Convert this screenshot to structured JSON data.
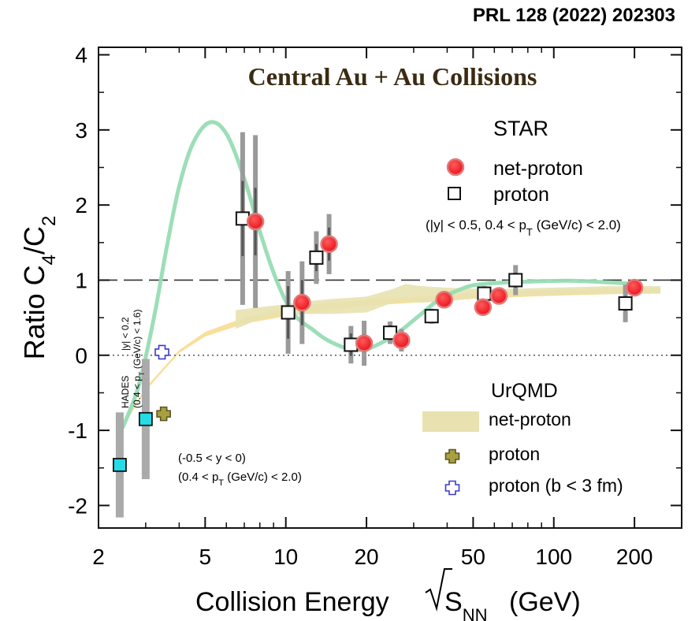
{
  "reference": "PRL 128 (2022) 202303",
  "colors": {
    "net_proton_fill": "#f0141e",
    "net_proton_ring": "#e07a7a",
    "hades_fill": "#22dde8",
    "model_curve": "#97dcb4",
    "yellow_band": "#f7d98a",
    "urqmd_band": "#e8e2b0",
    "urqmd_proton": "#a8a040",
    "urqmd_b3": "#3a3ad0",
    "title_color": "#3a2b12",
    "err_gray": "#555555"
  },
  "chart_data": {
    "type": "scatter",
    "title": "Central Au + Au Collisions",
    "xlabel": "Collision Energy",
    "xlabel_sqrt": "S",
    "xlabel_sub": "NN",
    "xlabel_unit": "(GeV)",
    "ylabel": "Ratio C",
    "ylabel_sub1": "4",
    "ylabel_mid": "/C",
    "ylabel_sub2": "2",
    "xscale": "log",
    "xlim": [
      2,
      300
    ],
    "ylim": [
      -2.3,
      4.1
    ],
    "xticks": [
      2,
      5,
      10,
      20,
      50,
      100,
      200
    ],
    "xtick_labels": [
      "2",
      "5",
      "10",
      "20",
      "50",
      "100",
      "200"
    ],
    "yticks": [
      -2,
      -1,
      0,
      1,
      2,
      3,
      4
    ],
    "ytick_labels": [
      "-2",
      "-1",
      "0",
      "1",
      "2",
      "3",
      "4"
    ],
    "reference_lines": [
      {
        "y": 1,
        "style": "dashed"
      },
      {
        "y": 0,
        "style": "dotted"
      }
    ],
    "legend_star": {
      "title": "STAR",
      "net_proton": "net-proton",
      "proton": "proton",
      "cuts": "(|y| < 0.5, 0.4 < p",
      "cuts_sub": "T",
      "cuts_end": " (GeV/c) < 2.0)"
    },
    "legend_urqmd": {
      "title": "UrQMD",
      "net_proton": "net-proton",
      "proton": "proton",
      "proton_b3": "proton (b < 3 fm)"
    },
    "hades_label": "HADES",
    "hades_cut1": "|y| < 0.2",
    "hades_cut2a": "(0.4 < p",
    "hades_cut2b": "T",
    "hades_cut2c": " (GeV/c) < 1.6)",
    "urqmd_proton_cut1": "(-0.5 < y < 0)",
    "urqmd_proton_cut2a": "(0.4 < p",
    "urqmd_proton_cut2b": "T",
    "urqmd_proton_cut2c": " (GeV/c) < 2.0)",
    "series": [
      {
        "name": "net-proton",
        "points": [
          {
            "x": 7.7,
            "y": 1.78,
            "stat": 0.45,
            "sys": 1.15
          },
          {
            "x": 11.5,
            "y": 0.7,
            "stat": 0.3,
            "sys": 0.55
          },
          {
            "x": 14.5,
            "y": 1.48,
            "stat": 0.22,
            "sys": 0.4
          },
          {
            "x": 19.6,
            "y": 0.16,
            "stat": 0.12,
            "sys": 0.3
          },
          {
            "x": 27,
            "y": 0.2,
            "stat": 0.1,
            "sys": 0.15
          },
          {
            "x": 39,
            "y": 0.74,
            "stat": 0.1,
            "sys": 0.1
          },
          {
            "x": 54.4,
            "y": 0.64,
            "stat": 0.05,
            "sys": 0.05
          },
          {
            "x": 62.4,
            "y": 0.79,
            "stat": 0.08,
            "sys": 0.1
          },
          {
            "x": 200,
            "y": 0.9,
            "stat": 0.05,
            "sys": 0.06
          }
        ]
      },
      {
        "name": "proton",
        "points": [
          {
            "x": 6.9,
            "y": 1.82,
            "stat": 0.5,
            "sys": 1.15
          },
          {
            "x": 10.2,
            "y": 0.57,
            "stat": 0.35,
            "sys": 0.55
          },
          {
            "x": 13.0,
            "y": 1.3,
            "stat": 0.18,
            "sys": 0.35
          },
          {
            "x": 17.5,
            "y": 0.14,
            "stat": 0.15,
            "sys": 0.25
          },
          {
            "x": 24.5,
            "y": 0.3,
            "stat": 0.1,
            "sys": 0.15
          },
          {
            "x": 35,
            "y": 0.52,
            "stat": 0.08,
            "sys": 0.1
          },
          {
            "x": 55,
            "y": 0.82,
            "stat": 0.08,
            "sys": 0.1
          },
          {
            "x": 72,
            "y": 1.0,
            "stat": 0.1,
            "sys": 0.2
          },
          {
            "x": 185,
            "y": 0.69,
            "stat": 0.1,
            "sys": 0.25
          }
        ]
      },
      {
        "name": "HADES",
        "points": [
          {
            "x": 2.4,
            "y": -1.46,
            "sys": 0.7
          },
          {
            "x": 3.0,
            "y": -0.85,
            "sys": 0.8
          }
        ]
      },
      {
        "name": "proton",
        "model": "UrQMD",
        "points": [
          {
            "x": 3.5,
            "y": -0.78
          }
        ]
      },
      {
        "name": "proton (b < 3 fm)",
        "model": "UrQMD",
        "points": [
          {
            "x": 3.45,
            "y": 0.04
          }
        ]
      }
    ],
    "model_curve": {
      "x": [
        2.4,
        2.8,
        3.2,
        3.6,
        4.0,
        4.5,
        5.2,
        6.0,
        7.0,
        8.0,
        9.0,
        10.0,
        11.0,
        12.5,
        14.0,
        16.0,
        18.0,
        20.0,
        22.0,
        25.0,
        28.0,
        32.0,
        36.0,
        40.0,
        45.0,
        50.0,
        60.0,
        80.0,
        120.0,
        200.0
      ],
      "y": [
        -1.05,
        -0.45,
        0.45,
        1.45,
        2.25,
        2.82,
        3.1,
        2.95,
        2.35,
        1.65,
        1.1,
        0.72,
        0.5,
        0.35,
        0.22,
        0.12,
        0.07,
        0.08,
        0.14,
        0.25,
        0.38,
        0.55,
        0.7,
        0.8,
        0.88,
        0.93,
        0.96,
        0.98,
        0.99,
        0.95
      ]
    },
    "yellow_band": {
      "x": [
        2.4,
        3.0,
        4.0,
        5.0,
        7.0,
        10.0,
        15.0,
        20.0,
        30.0,
        50.0,
        80.0,
        120.0,
        200.0,
        250.0
      ],
      "y_center": [
        -1.0,
        -0.45,
        0.05,
        0.28,
        0.46,
        0.58,
        0.65,
        0.7,
        0.74,
        0.79,
        0.82,
        0.84,
        0.86,
        0.86
      ],
      "half_width": [
        0.02,
        0.02,
        0.02,
        0.03,
        0.04,
        0.06,
        0.05,
        0.04,
        0.04,
        0.04,
        0.04,
        0.04,
        0.04,
        0.04
      ]
    },
    "urqmd_band": {
      "x": [
        6.5,
        8.0,
        10.0,
        12.0,
        15.0,
        20.0,
        25.0,
        28.0,
        32.0,
        40.0,
        60.0,
        100.0,
        160.0,
        250.0
      ],
      "y_low": [
        0.35,
        0.48,
        0.55,
        0.55,
        0.55,
        0.57,
        0.7,
        0.72,
        0.7,
        0.72,
        0.78,
        0.8,
        0.82,
        0.82
      ],
      "y_high": [
        0.6,
        0.64,
        0.68,
        0.72,
        0.75,
        0.78,
        0.88,
        0.95,
        0.92,
        0.9,
        0.88,
        0.9,
        0.92,
        0.92
      ]
    }
  }
}
